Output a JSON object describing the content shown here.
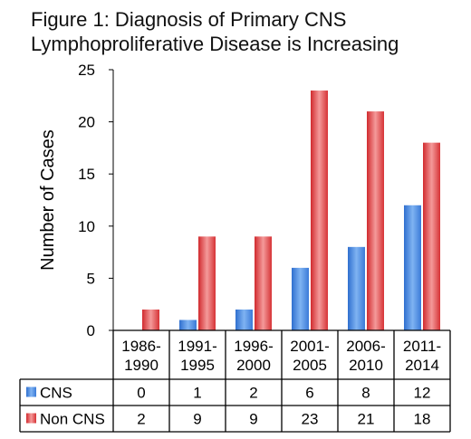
{
  "chart_data": {
    "type": "bar",
    "title": "Figure 1:  Diagnosis of Primary CNS\nLymphoproliferative Disease is Increasing",
    "ylabel": "Number of Cases",
    "xlabel": "",
    "ylim": [
      0,
      25
    ],
    "yticks": [
      0,
      5,
      10,
      15,
      20,
      25
    ],
    "grid": false,
    "legend": "data-table",
    "categories": [
      [
        "1986-",
        "1990"
      ],
      [
        "1991-",
        "1995"
      ],
      [
        "1996-",
        "2000"
      ],
      [
        "2001-",
        "2005"
      ],
      [
        "2006-",
        "2010"
      ],
      [
        "2011-",
        "2014"
      ]
    ],
    "series": [
      {
        "name": "CNS",
        "color": "#4a8fe0",
        "values": [
          0,
          1,
          2,
          6,
          8,
          12
        ]
      },
      {
        "name": "Non CNS",
        "color": "#e0393c",
        "values": [
          2,
          9,
          9,
          23,
          21,
          18
        ]
      }
    ]
  }
}
